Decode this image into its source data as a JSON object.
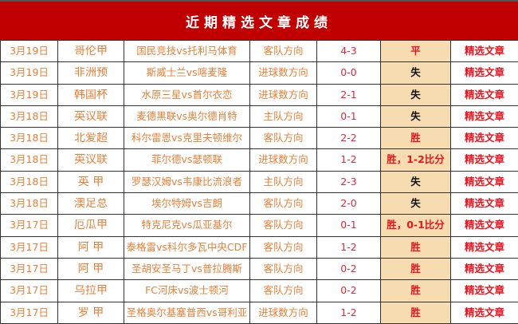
{
  "title": "近期精选文章成绩",
  "colors": {
    "header": "#c00000",
    "result_bg": "#f7dcb2",
    "text": "#e5803a",
    "red": "#e8141e"
  },
  "rows": [
    {
      "date": "3月19日",
      "league": "哥伦甲",
      "match": "国民竞技vs托利马体育",
      "direction": "客队方向",
      "score": "4-3",
      "result": "平",
      "link": "精选文章"
    },
    {
      "date": "3月19日",
      "league": "非洲预",
      "match": "斯威士兰vs喀麦隆",
      "direction": "进球数方向",
      "score": "0-0",
      "result": "失",
      "link": "精选文章"
    },
    {
      "date": "3月19日",
      "league": "韩国杯",
      "match": "水原三星vs首尔衣恋",
      "direction": "进球数方向",
      "score": "2-1",
      "result": "失",
      "link": "精选文章"
    },
    {
      "date": "3月18日",
      "league": "英议联",
      "match": "麦德黑联vs奥尔德肖特",
      "direction": "主队方向",
      "score": "0-1",
      "result": "失",
      "link": "精选文章"
    },
    {
      "date": "3月18日",
      "league": "北爱超",
      "match": "科尔雷恩vs克里夫顿维尔",
      "direction": "客队方向",
      "score": "2-2",
      "result": "胜",
      "link": "精选文章"
    },
    {
      "date": "3月18日",
      "league": "英议联",
      "match": "菲尔德vs瑟顿联",
      "direction": "进球数方向",
      "score": "1-2",
      "result": "胜，1-2比分",
      "link": "精选文章"
    },
    {
      "date": "3月18日",
      "league": "英 甲",
      "match": "罗瑟汉姆vs韦康比流浪者",
      "direction": "主队方向",
      "score": "2-3",
      "result": "失",
      "link": "精选文章"
    },
    {
      "date": "3月18日",
      "league": "澳足总",
      "match": "埃尔特姆vs吉朗",
      "direction": "客队方向",
      "score": "2-0",
      "result": "失",
      "link": "精选文章"
    },
    {
      "date": "3月17日",
      "league": "厄瓜甲",
      "match": "特克尼克vs瓜亚基尔",
      "direction": "客队方向",
      "score": "0-1",
      "result": "胜，0-1比分",
      "link": "精选文章"
    },
    {
      "date": "3月17日",
      "league": "阿 甲",
      "match": "泰格雷vs科尔多瓦中央CDF",
      "direction": "客队方向",
      "score": "1-2",
      "result": "胜",
      "link": "精选文章"
    },
    {
      "date": "3月17日",
      "league": "阿 甲",
      "match": "圣胡安圣马丁vs普拉腾斯",
      "direction": "客队方向",
      "score": "0-2",
      "result": "胜",
      "link": "精选文章"
    },
    {
      "date": "3月17日",
      "league": "乌拉甲",
      "match": "FC河床vs波士顿河",
      "direction": "客队方向",
      "score": "0-2",
      "result": "胜",
      "link": "精选文章"
    },
    {
      "date": "3月17日",
      "league": "罗 甲",
      "match": "圣格奥尔基塞普西vs哥利亚东迪",
      "direction": "进球数方向",
      "score": "1-2",
      "result": "胜",
      "link": "精选文章"
    }
  ]
}
